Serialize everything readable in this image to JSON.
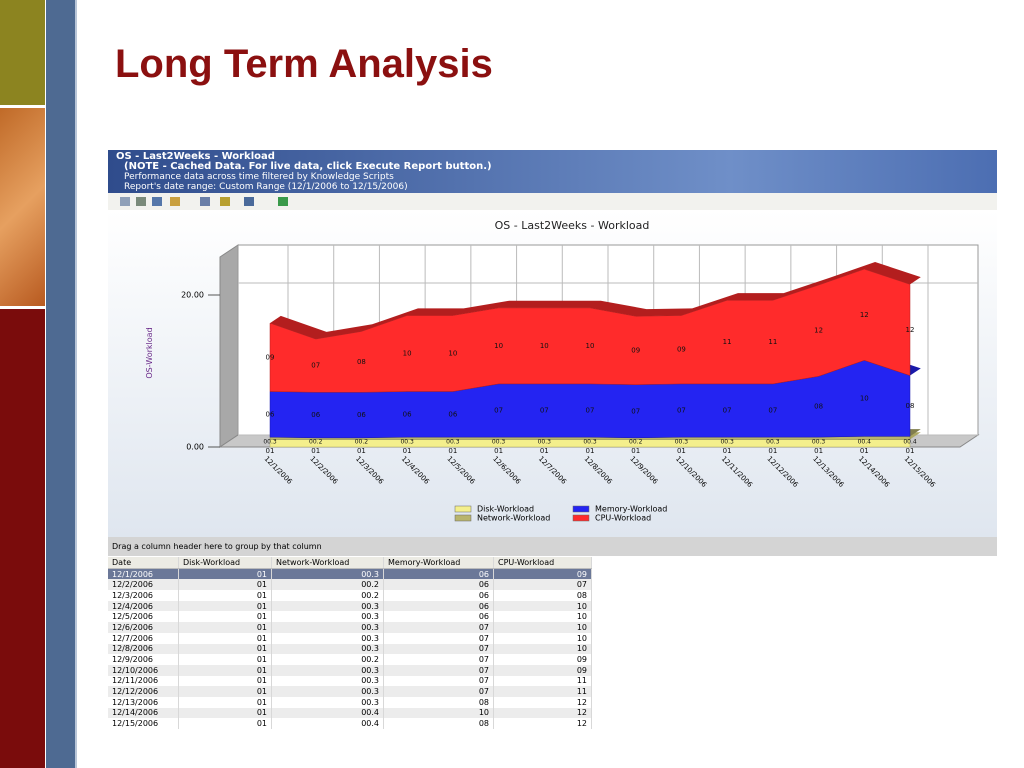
{
  "slide_title": "Long Term Analysis",
  "report": {
    "title": "OS - Last2Weeks - Workload",
    "note": "(NOTE - Cached Data. For live data, click Execute Report button.)",
    "description": "Performance data across time filtered by Knowledge Scripts",
    "date_range": "Report's date range: Custom Range (12/1/2006 to 12/15/2006)"
  },
  "chart_data": {
    "type": "area",
    "stacked": true,
    "title": "OS - Last2Weeks - Workload",
    "y_label": "OS-Workload",
    "categories": [
      "12/1/2006",
      "12/2/2006",
      "12/3/2006",
      "12/4/2006",
      "12/5/2006",
      "12/6/2006",
      "12/7/2006",
      "12/8/2006",
      "12/9/2006",
      "12/10/2006",
      "12/11/2006",
      "12/12/2006",
      "12/13/2006",
      "12/14/2006",
      "12/15/2006"
    ],
    "series": [
      {
        "name": "Disk-Workload",
        "color": "#f4ef8c",
        "values": [
          1,
          1,
          1,
          1,
          1,
          1,
          1,
          1,
          1,
          1,
          1,
          1,
          1,
          1,
          1
        ],
        "value_labels": [
          "01",
          "01",
          "01",
          "01",
          "01",
          "01",
          "01",
          "01",
          "01",
          "01",
          "01",
          "01",
          "01",
          "01",
          "01"
        ]
      },
      {
        "name": "Network-Workload",
        "color": "#b8b46c",
        "values": [
          0.3,
          0.2,
          0.2,
          0.3,
          0.3,
          0.3,
          0.3,
          0.3,
          0.2,
          0.3,
          0.3,
          0.3,
          0.3,
          0.4,
          0.4
        ],
        "value_labels": [
          "00.3",
          "00.2",
          "00.2",
          "00.3",
          "00.3",
          "00.3",
          "00.3",
          "00.3",
          "00.2",
          "00.3",
          "00.3",
          "00.3",
          "00.3",
          "00.4",
          "00.4"
        ]
      },
      {
        "name": "Memory-Workload",
        "color": "#2424f2",
        "values": [
          6,
          6,
          6,
          6,
          6,
          7,
          7,
          7,
          7,
          7,
          7,
          7,
          8,
          10,
          8
        ],
        "value_labels": [
          "06",
          "06",
          "06",
          "06",
          "06",
          "07",
          "07",
          "07",
          "07",
          "07",
          "07",
          "07",
          "08",
          "10",
          "08"
        ]
      },
      {
        "name": "CPU-Workload",
        "color": "#ff2b2b",
        "values": [
          9,
          7,
          8,
          10,
          10,
          10,
          10,
          10,
          9,
          9,
          11,
          11,
          12,
          12,
          12
        ],
        "value_labels": [
          "09",
          "07",
          "08",
          "10",
          "10",
          "10",
          "10",
          "10",
          "09",
          "09",
          "11",
          "11",
          "12",
          "12",
          "12"
        ]
      }
    ],
    "ylim": [
      0,
      25
    ],
    "yticks": [
      {
        "value": 0,
        "label": "0.00"
      },
      {
        "value": 20,
        "label": "20.00"
      }
    ],
    "grid": true
  },
  "table": {
    "group_hint": "Drag a column header here to group by that column",
    "date_header": "Date",
    "selected_row": 0
  }
}
